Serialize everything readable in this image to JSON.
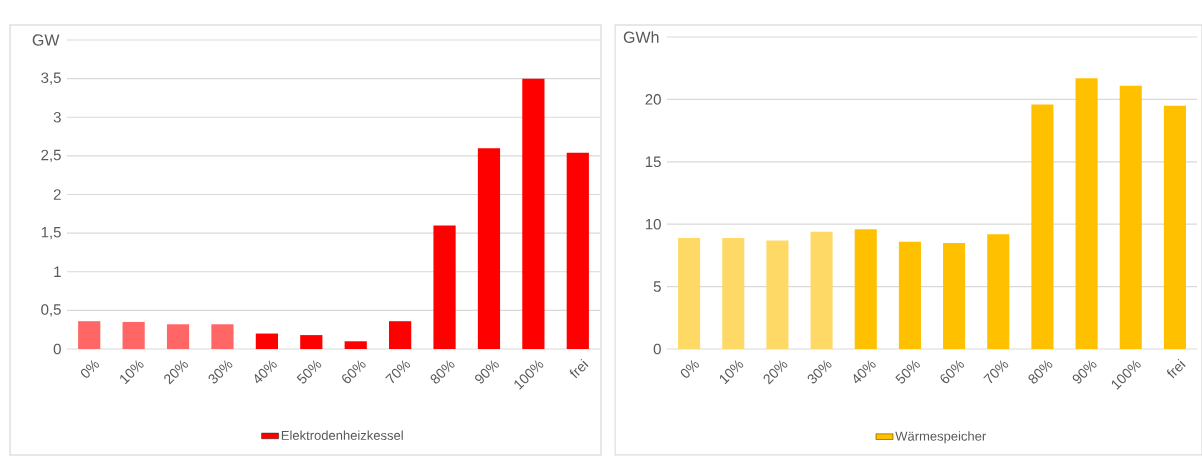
{
  "chart_data": [
    {
      "type": "bar",
      "ylabel": "GW",
      "categories": [
        "0%",
        "10%",
        "20%",
        "30%",
        "40%",
        "50%",
        "60%",
        "70%",
        "80%",
        "90%",
        "100%",
        "frei"
      ],
      "series": [
        {
          "name": "Elektrodenheizkessel",
          "color": "#ff0000",
          "values": [
            0.36,
            0.35,
            0.32,
            0.32,
            0.2,
            0.18,
            0.1,
            0.36,
            1.6,
            2.6,
            3.5,
            2.54
          ],
          "colors": [
            "#ff6666",
            "#ff6666",
            "#ff6666",
            "#ff6666",
            "#ff0000",
            "#ff0000",
            "#ff0000",
            "#ff0000",
            "#ff0000",
            "#ff0000",
            "#ff0000",
            "#ff0000"
          ]
        }
      ],
      "ylim": [
        0,
        4
      ],
      "yticks": [
        0,
        {
          "value": 0.5,
          "label": "0,5"
        },
        1,
        {
          "value": 1.5,
          "label": "1,5"
        },
        2,
        {
          "value": 2.5,
          "label": "2,5"
        },
        3,
        {
          "value": 3.5,
          "label": "3,5"
        },
        {
          "value": 4,
          "label": null
        }
      ],
      "grid": "y",
      "legend": "bottom"
    },
    {
      "type": "bar",
      "ylabel": "GWh",
      "categories": [
        "0%",
        "10%",
        "20%",
        "30%",
        "40%",
        "50%",
        "60%",
        "70%",
        "80%",
        "90%",
        "100%",
        "frei"
      ],
      "series": [
        {
          "name": "Wärmespeicher",
          "color": "#ffc000",
          "values": [
            8.9,
            8.9,
            8.7,
            9.4,
            9.6,
            8.6,
            8.5,
            9.2,
            19.6,
            21.7,
            21.1,
            19.5
          ],
          "colors": [
            "#ffd966",
            "#ffd966",
            "#ffd966",
            "#ffd966",
            "#ffc000",
            "#ffc000",
            "#ffc000",
            "#ffc000",
            "#ffc000",
            "#ffc000",
            "#ffc000",
            "#ffc000"
          ]
        }
      ],
      "ylim": [
        0,
        25
      ],
      "yticks": [
        0,
        5,
        10,
        15,
        20,
        {
          "value": 25,
          "label": null
        }
      ],
      "grid": "y",
      "legend": "bottom"
    }
  ]
}
